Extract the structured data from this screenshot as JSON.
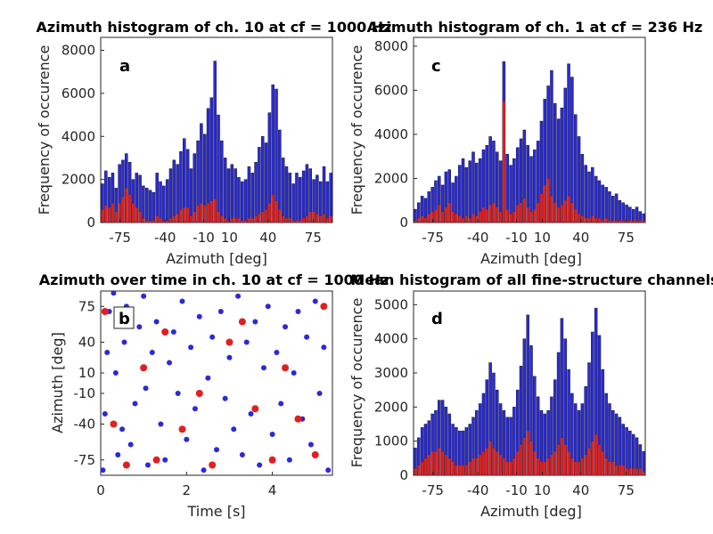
{
  "figure": {
    "panels": [
      {
        "id": "a",
        "title": "Azimuth histogram of ch. 10 at cf = 1000 Hz",
        "xlabel": "Azimuth [deg]",
        "ylabel": "Frequency of occurence",
        "panel_letter": "a"
      },
      {
        "id": "c",
        "title": "Azimuth histogram of ch. 1 at cf = 236 Hz",
        "xlabel": "Azimuth [deg]",
        "ylabel": "Frequency of occurence",
        "panel_letter": "c"
      },
      {
        "id": "b",
        "title": "Azimuth over time in ch. 10 at cf = 1000 Hz",
        "xlabel": "Time [s]",
        "ylabel": "Azimuth [deg]",
        "panel_letter": "b"
      },
      {
        "id": "d",
        "title": "Mean histogram of all fine-structure channels",
        "xlabel": "Azimuth [deg]",
        "ylabel": "Frequency of occurence",
        "panel_letter": "d"
      }
    ],
    "colors": {
      "blue": "#2a2ad6",
      "red": "#e02020",
      "dark": "#1a1a3a",
      "axis": "#262626"
    }
  },
  "chart_data": [
    {
      "type": "bar",
      "panel": "a",
      "title": "Azimuth histogram of ch. 10 at cf = 1000 Hz",
      "xlabel": "Azimuth [deg]",
      "ylabel": "Frequency of occurence",
      "x_ticks": [
        "-75",
        "-40",
        "-10",
        "10",
        "40",
        "75"
      ],
      "x_tick_values": [
        -75,
        -40,
        -10,
        10,
        40,
        75
      ],
      "y_ticks": [
        "0",
        "2000",
        "4000",
        "6000",
        "8000"
      ],
      "ylim": [
        0,
        8600
      ],
      "xlim": [
        -90,
        90
      ],
      "series": [
        {
          "values": [
            1800,
            2400,
            2100,
            2300,
            1600,
            2700,
            2900,
            3200,
            2800,
            2000,
            2300,
            2200,
            1700,
            1600,
            1500,
            1400,
            2300,
            1900,
            1700,
            2000,
            2500,
            2900,
            2700,
            3300,
            3900,
            3400,
            2500,
            3200,
            3800,
            4600,
            4100,
            5300,
            5800,
            7500,
            5000,
            3800,
            3000,
            2500,
            2700,
            2500,
            2100,
            1900,
            2000,
            2600,
            2300,
            2800,
            3500,
            4000,
            3700,
            5100,
            6400,
            6200,
            4300,
            3000,
            2600,
            2300,
            1800,
            2300,
            2100,
            2400,
            2700,
            2500,
            2000,
            2200,
            1900,
            2600,
            1900,
            2300
          ]
        },
        {
          "values": [
            600,
            800,
            700,
            900,
            500,
            900,
            1200,
            1600,
            1300,
            900,
            700,
            500,
            200,
            100,
            100,
            100,
            300,
            200,
            100,
            100,
            200,
            300,
            400,
            600,
            700,
            700,
            300,
            500,
            800,
            900,
            800,
            900,
            1000,
            1100,
            500,
            300,
            200,
            100,
            200,
            200,
            200,
            100,
            100,
            200,
            200,
            300,
            400,
            500,
            600,
            900,
            1300,
            1000,
            600,
            300,
            200,
            200,
            100,
            100,
            100,
            200,
            300,
            500,
            500,
            400,
            300,
            400,
            200,
            300
          ]
        }
      ]
    },
    {
      "type": "bar",
      "panel": "c",
      "title": "Azimuth histogram of ch. 1 at cf = 236 Hz",
      "xlabel": "Azimuth [deg]",
      "ylabel": "Frequency of occurence",
      "x_ticks": [
        "-75",
        "-40",
        "-10",
        "10",
        "40",
        "75"
      ],
      "x_tick_values": [
        -75,
        -40,
        -10,
        10,
        40,
        75
      ],
      "y_ticks": [
        "0",
        "2000",
        "4000",
        "6000",
        "8000"
      ],
      "ylim": [
        0,
        8400
      ],
      "xlim": [
        -90,
        90
      ],
      "series": [
        {
          "values": [
            600,
            900,
            1200,
            1100,
            1400,
            1600,
            1900,
            2100,
            1700,
            2300,
            2400,
            1800,
            2100,
            2600,
            2900,
            2500,
            2800,
            3200,
            2700,
            2900,
            3300,
            3500,
            3900,
            3700,
            3200,
            2800,
            7300,
            3100,
            2600,
            2900,
            3400,
            3800,
            4200,
            3500,
            3000,
            3300,
            3700,
            4600,
            5600,
            6200,
            6900,
            5400,
            4700,
            5200,
            6100,
            7200,
            6600,
            4900,
            3900,
            3100,
            2600,
            2300,
            2500,
            2100,
            1900,
            1700,
            1600,
            1400,
            1200,
            1300,
            1000,
            900,
            800,
            700,
            600,
            700,
            500,
            400
          ]
        },
        {
          "values": [
            100,
            200,
            300,
            200,
            400,
            500,
            600,
            800,
            500,
            700,
            900,
            500,
            400,
            300,
            200,
            300,
            200,
            400,
            300,
            500,
            700,
            600,
            800,
            900,
            700,
            500,
            5500,
            600,
            400,
            500,
            800,
            900,
            1100,
            700,
            500,
            600,
            900,
            1300,
            1700,
            2000,
            1200,
            900,
            700,
            800,
            1000,
            1200,
            900,
            600,
            400,
            300,
            200,
            200,
            300,
            200,
            200,
            100,
            200,
            100,
            100,
            100,
            100,
            100,
            100,
            100,
            100,
            100,
            100,
            100
          ]
        }
      ]
    },
    {
      "type": "scatter",
      "panel": "b",
      "title": "Azimuth over time in ch. 10 at cf = 1000 Hz",
      "xlabel": "Time [s]",
      "ylabel": "Azimuth [deg]",
      "x_ticks": [
        "0",
        "2",
        "4"
      ],
      "x_tick_values": [
        0,
        2,
        4
      ],
      "xlim": [
        0,
        5.4
      ],
      "y_ticks": [
        "-75",
        "-40",
        "-10",
        "10",
        "40",
        "75"
      ],
      "y_tick_values": [
        -75,
        -40,
        -10,
        10,
        40,
        75
      ],
      "ylim": [
        -90,
        90
      ],
      "series": [
        {
          "name": "",
          "color": "#2a2ad6",
          "points": [
            [
              0.05,
              -85
            ],
            [
              0.1,
              -30
            ],
            [
              0.15,
              30
            ],
            [
              0.2,
              70
            ],
            [
              0.3,
              88
            ],
            [
              0.35,
              10
            ],
            [
              0.4,
              -70
            ],
            [
              0.5,
              -45
            ],
            [
              0.55,
              40
            ],
            [
              0.6,
              75
            ],
            [
              0.7,
              -60
            ],
            [
              0.8,
              -20
            ],
            [
              0.9,
              55
            ],
            [
              1.0,
              85
            ],
            [
              1.05,
              -5
            ],
            [
              1.1,
              -80
            ],
            [
              1.2,
              30
            ],
            [
              1.3,
              60
            ],
            [
              1.4,
              -40
            ],
            [
              1.5,
              -75
            ],
            [
              1.6,
              20
            ],
            [
              1.7,
              50
            ],
            [
              1.8,
              -10
            ],
            [
              1.9,
              80
            ],
            [
              2.0,
              -55
            ],
            [
              2.1,
              35
            ],
            [
              2.2,
              -25
            ],
            [
              2.3,
              65
            ],
            [
              2.4,
              -85
            ],
            [
              2.5,
              5
            ],
            [
              2.6,
              45
            ],
            [
              2.7,
              -65
            ],
            [
              2.8,
              70
            ],
            [
              2.9,
              -15
            ],
            [
              3.0,
              25
            ],
            [
              3.1,
              -45
            ],
            [
              3.2,
              85
            ],
            [
              3.3,
              -70
            ],
            [
              3.4,
              40
            ],
            [
              3.5,
              -30
            ],
            [
              3.6,
              60
            ],
            [
              3.7,
              -80
            ],
            [
              3.8,
              15
            ],
            [
              3.9,
              75
            ],
            [
              4.0,
              -50
            ],
            [
              4.1,
              30
            ],
            [
              4.2,
              -20
            ],
            [
              4.3,
              55
            ],
            [
              4.4,
              -75
            ],
            [
              4.5,
              10
            ],
            [
              4.6,
              70
            ],
            [
              4.7,
              -35
            ],
            [
              4.8,
              45
            ],
            [
              4.9,
              -60
            ],
            [
              5.0,
              80
            ],
            [
              5.1,
              -10
            ],
            [
              5.2,
              35
            ],
            [
              5.3,
              -85
            ]
          ]
        },
        {
          "name": "",
          "color": "#e02020",
          "points": [
            [
              0.1,
              70
            ],
            [
              0.3,
              -40
            ],
            [
              0.6,
              -80
            ],
            [
              1.0,
              15
            ],
            [
              1.3,
              -75
            ],
            [
              1.5,
              50
            ],
            [
              1.9,
              -45
            ],
            [
              2.3,
              -10
            ],
            [
              2.6,
              -80
            ],
            [
              3.0,
              40
            ],
            [
              3.3,
              60
            ],
            [
              3.6,
              -25
            ],
            [
              4.0,
              -75
            ],
            [
              4.3,
              15
            ],
            [
              4.6,
              -35
            ],
            [
              5.0,
              -70
            ],
            [
              5.2,
              75
            ]
          ]
        }
      ]
    },
    {
      "type": "bar",
      "panel": "d",
      "title": "Mean histogram of all fine-structure channels",
      "xlabel": "Azimuth [deg]",
      "ylabel": "Frequency of occurence",
      "x_ticks": [
        "-75",
        "-40",
        "-10",
        "10",
        "40",
        "75"
      ],
      "x_tick_values": [
        -75,
        -40,
        -10,
        10,
        40,
        75
      ],
      "y_ticks": [
        "0",
        "1000",
        "2000",
        "3000",
        "4000",
        "5000"
      ],
      "ylim": [
        0,
        5400
      ],
      "xlim": [
        -90,
        90
      ],
      "series": [
        {
          "values": [
            800,
            1100,
            1400,
            1500,
            1600,
            1800,
            1900,
            2200,
            2200,
            2000,
            1800,
            1500,
            1400,
            1300,
            1300,
            1400,
            1500,
            1700,
            1900,
            2100,
            2400,
            2800,
            3300,
            3000,
            2500,
            2100,
            1900,
            1700,
            1700,
            2000,
            2500,
            3200,
            4000,
            4700,
            3800,
            2900,
            2300,
            1900,
            1800,
            1900,
            2300,
            2800,
            3600,
            4600,
            4000,
            3100,
            2400,
            2100,
            1900,
            2100,
            2600,
            3300,
            4200,
            4900,
            4100,
            3100,
            2400,
            2100,
            1900,
            1800,
            1700,
            1500,
            1400,
            1300,
            1200,
            1100,
            900,
            700
          ]
        },
        {
          "values": [
            200,
            300,
            400,
            500,
            600,
            700,
            700,
            800,
            700,
            600,
            500,
            400,
            300,
            300,
            300,
            300,
            400,
            500,
            500,
            600,
            700,
            800,
            1000,
            800,
            700,
            600,
            500,
            400,
            400,
            500,
            700,
            900,
            1100,
            1300,
            1000,
            700,
            500,
            400,
            400,
            500,
            600,
            700,
            900,
            1100,
            900,
            700,
            500,
            400,
            400,
            500,
            600,
            800,
            1000,
            1200,
            900,
            700,
            500,
            400,
            400,
            300,
            300,
            300,
            200,
            200,
            200,
            200,
            200,
            100
          ]
        }
      ]
    }
  ]
}
